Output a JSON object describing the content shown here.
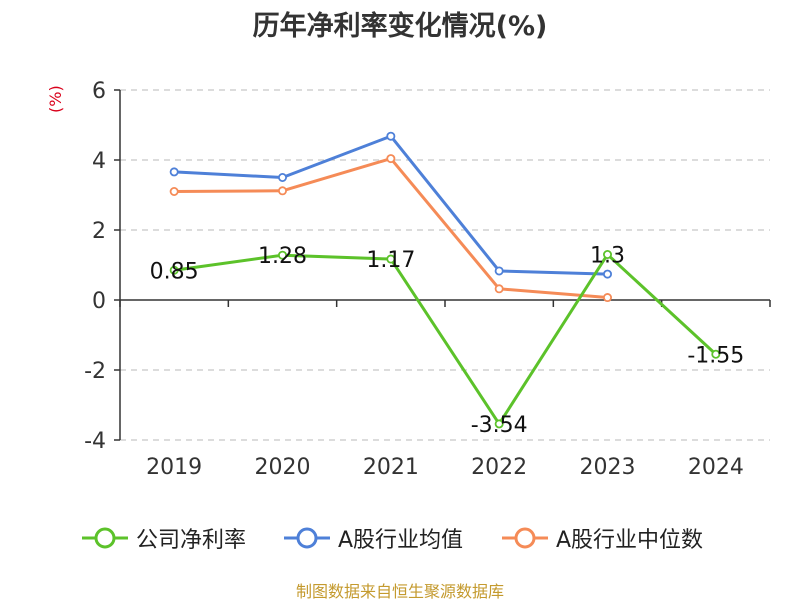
{
  "chart_data": {
    "type": "line",
    "title": "历年净利率变化情况(%)",
    "unit_label": "(%)",
    "categories": [
      "2019",
      "2020",
      "2021",
      "2022",
      "2023",
      "2024"
    ],
    "ylim": [
      -4,
      6
    ],
    "yticks": [
      "-4",
      "-2",
      "0",
      "2",
      "4",
      "6"
    ],
    "grid": true,
    "legend_position": "bottom",
    "series": [
      {
        "name": "公司净利率",
        "color": "#5cc22a",
        "values": [
          0.85,
          1.28,
          1.17,
          -3.54,
          1.3,
          -1.55
        ],
        "labels": [
          "0.85",
          "1.28",
          "1.17",
          "-3.54",
          "1.3",
          "-1.55"
        ]
      },
      {
        "name": "A股行业均值",
        "color": "#4e80d8",
        "values": [
          3.66,
          3.5,
          4.68,
          0.83,
          0.74,
          null
        ]
      },
      {
        "name": "A股行业中位数",
        "color": "#f58b57",
        "values": [
          3.1,
          3.12,
          4.04,
          0.32,
          0.07,
          null
        ]
      }
    ]
  },
  "footer": {
    "source": "制图数据来自恒生聚源数据库"
  }
}
